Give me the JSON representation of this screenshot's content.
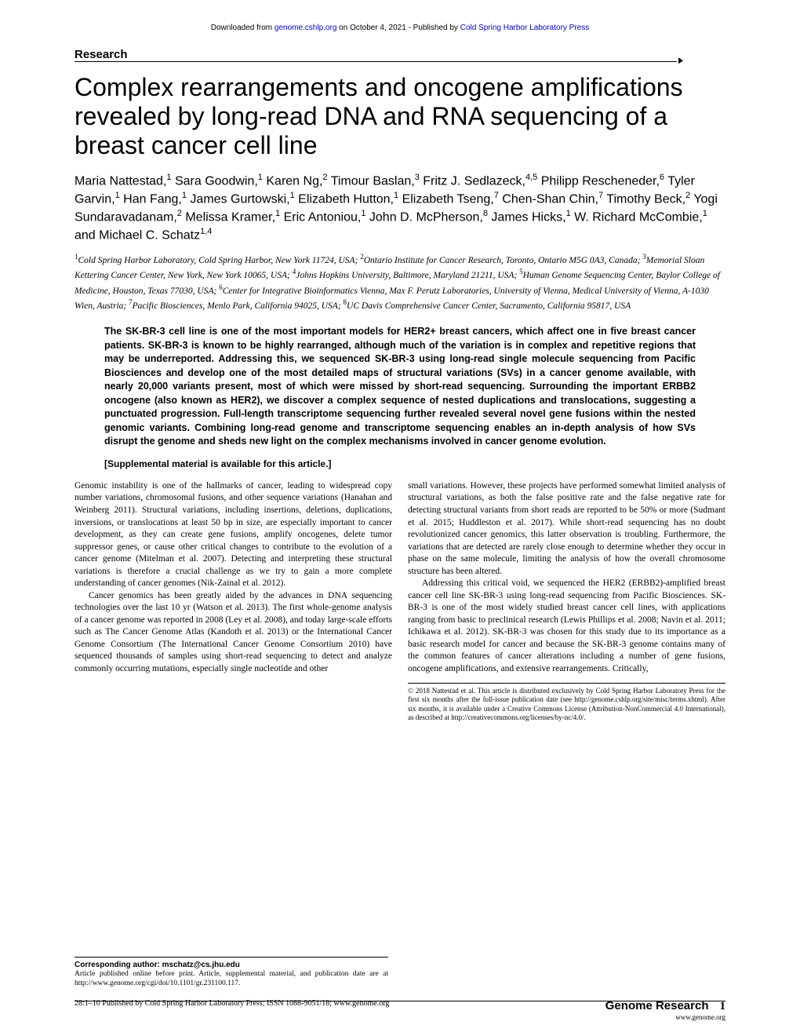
{
  "header": {
    "prefix": "Downloaded from ",
    "link1": "genome.cshlp.org",
    "mid": " on October 4, 2021 - Published by ",
    "link2": "Cold Spring Harbor Laboratory Press"
  },
  "section_label": "Research",
  "title": "Complex rearrangements and oncogene amplifications revealed by long-read DNA and RNA sequencing of a breast cancer cell line",
  "authors_html": "Maria Nattestad,<sup>1</sup> Sara Goodwin,<sup>1</sup> Karen Ng,<sup>2</sup> Timour Baslan,<sup>3</sup> Fritz J. Sedlazeck,<sup>4,5</sup> Philipp Rescheneder,<sup>6</sup> Tyler Garvin,<sup>1</sup> Han Fang,<sup>1</sup> James Gurtowski,<sup>1</sup> Elizabeth Hutton,<sup>1</sup> Elizabeth Tseng,<sup>7</sup> Chen-Shan Chin,<sup>7</sup> Timothy Beck,<sup>2</sup> Yogi Sundaravadanam,<sup>2</sup> Melissa Kramer,<sup>1</sup> Eric Antoniou,<sup>1</sup> John D. McPherson,<sup>8</sup> James Hicks,<sup>1</sup> W. Richard McCombie,<sup>1</sup> and Michael C. Schatz<sup>1,4</sup>",
  "affiliations_html": "<sup>1</sup>Cold Spring Harbor Laboratory, Cold Spring Harbor, New York 11724, USA; <sup>2</sup>Ontario Institute for Cancer Research, Toronto, Ontario M5G 0A3, Canada; <sup>3</sup>Memorial Sloan Kettering Cancer Center, New York, New York 10065, USA; <sup>4</sup>Johns Hopkins University, Baltimore, Maryland 21211, USA; <sup>5</sup>Human Genome Sequencing Center, Baylor College of Medicine, Houston, Texas 77030, USA; <sup>6</sup>Center for Integrative Bioinformatics Vienna, Max F. Perutz Laboratories, University of Vienna, Medical University of Vienna, A-1030 Wien, Austria; <sup>7</sup>Pacific Biosciences, Menlo Park, California 94025, USA; <sup>8</sup>UC Davis Comprehensive Cancer Center, Sacramento, California 95817, USA",
  "abstract": "The SK-BR-3 cell line is one of the most important models for HER2+ breast cancers, which affect one in five breast cancer patients. SK-BR-3 is known to be highly rearranged, although much of the variation is in complex and repetitive regions that may be underreported. Addressing this, we sequenced SK-BR-3 using long-read single molecule sequencing from Pacific Biosciences and develop one of the most detailed maps of structural variations (SVs) in a cancer genome available, with nearly 20,000 variants present, most of which were missed by short-read sequencing. Surrounding the important ERBB2 oncogene (also known as HER2), we discover a complex sequence of nested duplications and translocations, suggesting a punctuated progression. Full-length transcriptome sequencing further revealed several novel gene fusions within the nested genomic variants. Combining long-read genome and transcriptome sequencing enables an in-depth analysis of how SVs disrupt the genome and sheds new light on the complex mechanisms involved in cancer genome evolution.",
  "supplemental": "[Supplemental material is available for this article.]",
  "body": {
    "left_p1": "Genomic instability is one of the hallmarks of cancer, leading to widespread copy number variations, chromosomal fusions, and other sequence variations (Hanahan and Weinberg 2011). Structural variations, including insertions, deletions, duplications, inversions, or translocations at least 50 bp in size, are especially important to cancer development, as they can create gene fusions, amplify oncogenes, delete tumor suppressor genes, or cause other critical changes to contribute to the evolution of a cancer genome (Mitelman et al. 2007). Detecting and interpreting these structural variations is therefore a crucial challenge as we try to gain a more complete understanding of cancer genomes (Nik-Zainal et al. 2012).",
    "left_p2": "Cancer genomics has been greatly aided by the advances in DNA sequencing technologies over the last 10 yr (Watson et al. 2013). The first whole-genome analysis of a cancer genome was reported in 2008 (Ley et al. 2008), and today large-scale efforts such as The Cancer Genome Atlas (Kandoth et al. 2013) or the International Cancer Genome Consortium (The International Cancer Genome Consortium 2010) have sequenced thousands of samples using short-read sequencing to detect and analyze commonly occurring mutations, especially single nucleotide and other",
    "right_p1": "small variations. However, these projects have performed somewhat limited analysis of structural variations, as both the false positive rate and the false negative rate for detecting structural variants from short reads are reported to be 50% or more (Sudmant et al. 2015; Huddleston et al. 2017). While short-read sequencing has no doubt revolutionized cancer genomics, this latter observation is troubling. Furthermore, the variations that are detected are rarely close enough to determine whether they occur in phase on the same molecule, limiting the analysis of how the overall chromosome structure has been altered.",
    "right_p2": "Addressing this critical void, we sequenced the HER2 (ERBB2)-amplified breast cancer cell line SK-BR-3 using long-read sequencing from Pacific Biosciences. SK-BR-3 is one of the most widely studied breast cancer cell lines, with applications ranging from basic to preclinical research (Lewis Phillips et al. 2008; Navin et al. 2011; Ichikawa et al. 2012). SK-BR-3 was chosen for this study due to its importance as a basic research model for cancer and because the SK-BR-3 genome contains many of the common features of cancer alterations including a number of gene fusions, oncogene amplifications, and extensive rearrangements. Critically,"
  },
  "copyright": "© 2018 Nattestad et al.   This article is distributed exclusively by Cold Spring Harbor Laboratory Press for the first six months after the full-issue publication date (see http://genome.cshlp.org/site/misc/terms.xhtml). After six months, it is available under a Creative Commons License (Attribution-NonCommercial 4.0 International), as described at http://creativecommons.org/licenses/by-nc/4.0/.",
  "corresponding": "Corresponding author: mschatz@cs.jhu.edu",
  "pubnote": "Article published online before print. Article, supplemental material, and publication date are at http://www.genome.org/cgi/doi/10.1101/gr.231100.117.",
  "footer": {
    "left": "28:1–10 Published by Cold Spring Harbor Laboratory Press; ISSN 1088-9051/18; www.genome.org",
    "journal": "Genome Research",
    "page": "1",
    "site": "www.genome.org"
  }
}
